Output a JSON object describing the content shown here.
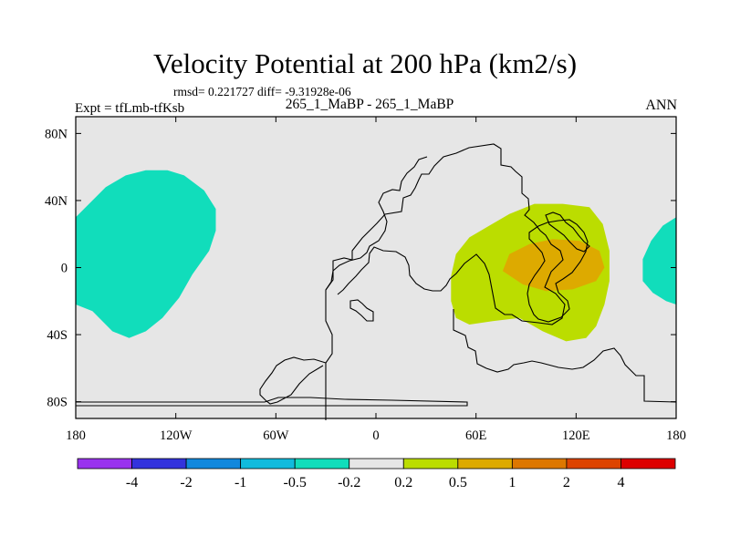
{
  "chart_data": {
    "type": "contour-map",
    "title": "Velocity Potential at 200 hPa (km2/s)",
    "stats_line": "rmsd= 0.221727 diff= -9.31928e-06",
    "left_label": "Expt = tfLmb-tfKsb",
    "center_label": "265_1_MaBP - 265_1_MaBP",
    "right_label": "ANN",
    "xlim": [
      -180,
      180
    ],
    "ylim": [
      -90,
      90
    ],
    "x_ticks": [
      {
        "value": -180,
        "label": "180"
      },
      {
        "value": -120,
        "label": "120W"
      },
      {
        "value": -60,
        "label": "60W"
      },
      {
        "value": 0,
        "label": "0"
      },
      {
        "value": 60,
        "label": "60E"
      },
      {
        "value": 120,
        "label": "120E"
      },
      {
        "value": 180,
        "label": "180"
      }
    ],
    "y_ticks": [
      {
        "value": 80,
        "label": "80N"
      },
      {
        "value": 40,
        "label": "40N"
      },
      {
        "value": 0,
        "label": "0"
      },
      {
        "value": -40,
        "label": "40S"
      },
      {
        "value": -80,
        "label": "80S"
      }
    ],
    "levels": [
      {
        "label": "-4",
        "color": "#9933ee"
      },
      {
        "label": "-2",
        "color": "#3333dd"
      },
      {
        "label": "-1",
        "color": "#1188dd"
      },
      {
        "label": "-0.5",
        "color": "#11bbdd"
      },
      {
        "label": "-0.2",
        "color": "#11ddbb"
      },
      {
        "label": "0.2",
        "color": "#e6e6e6"
      },
      {
        "label": "0.5",
        "color": "#bbdd00"
      },
      {
        "label": "1",
        "color": "#ddaa00"
      },
      {
        "label": "2",
        "color": "#dd7700"
      },
      {
        "label": "4",
        "color": "#dd4400"
      },
      {
        "label": "",
        "color": "#dd0000"
      }
    ],
    "background_color": "#e6e6e6",
    "regions": [
      {
        "name": "negative-region-west-pacific",
        "level": "-0.5 to -0.2",
        "color": "#11ddbb",
        "outline": [
          [
            -180,
            30
          ],
          [
            -172,
            38
          ],
          [
            -162,
            48
          ],
          [
            -150,
            55
          ],
          [
            -138,
            58
          ],
          [
            -125,
            58
          ],
          [
            -115,
            55
          ],
          [
            -103,
            46
          ],
          [
            -96,
            35
          ],
          [
            -96,
            22
          ],
          [
            -100,
            10
          ],
          [
            -110,
            -4
          ],
          [
            -118,
            -18
          ],
          [
            -128,
            -30
          ],
          [
            -138,
            -38
          ],
          [
            -148,
            -42
          ],
          [
            -158,
            -38
          ],
          [
            -170,
            -26
          ],
          [
            -180,
            -22
          ]
        ]
      },
      {
        "name": "negative-region-date-line",
        "level": "-0.5 to -0.2",
        "color": "#11ddbb",
        "outline": [
          [
            180,
            30
          ],
          [
            172,
            25
          ],
          [
            165,
            16
          ],
          [
            160,
            5
          ],
          [
            160,
            -8
          ],
          [
            166,
            -15
          ],
          [
            174,
            -20
          ],
          [
            180,
            -22
          ]
        ]
      },
      {
        "name": "positive-region-indian-ocean",
        "level": "0.2 to 0.5",
        "color": "#bbdd00",
        "outline": [
          [
            48,
            -30
          ],
          [
            45,
            -20
          ],
          [
            45,
            -5
          ],
          [
            48,
            8
          ],
          [
            56,
            18
          ],
          [
            68,
            25
          ],
          [
            80,
            32
          ],
          [
            95,
            38
          ],
          [
            112,
            38
          ],
          [
            128,
            36
          ],
          [
            136,
            26
          ],
          [
            140,
            10
          ],
          [
            140,
            -8
          ],
          [
            137,
            -22
          ],
          [
            132,
            -35
          ],
          [
            126,
            -42
          ],
          [
            114,
            -44
          ],
          [
            100,
            -38
          ],
          [
            86,
            -30
          ],
          [
            70,
            -32
          ],
          [
            56,
            -34
          ]
        ]
      },
      {
        "name": "positive-region-core",
        "level": "0.5 to 1",
        "color": "#ddaa00",
        "outline": [
          [
            76,
            -2
          ],
          [
            80,
            8
          ],
          [
            92,
            14
          ],
          [
            106,
            17
          ],
          [
            122,
            16
          ],
          [
            134,
            10
          ],
          [
            137,
            0
          ],
          [
            132,
            -8
          ],
          [
            118,
            -13
          ],
          [
            102,
            -14
          ],
          [
            88,
            -10
          ]
        ]
      }
    ],
    "legend_placement": "bottom"
  }
}
